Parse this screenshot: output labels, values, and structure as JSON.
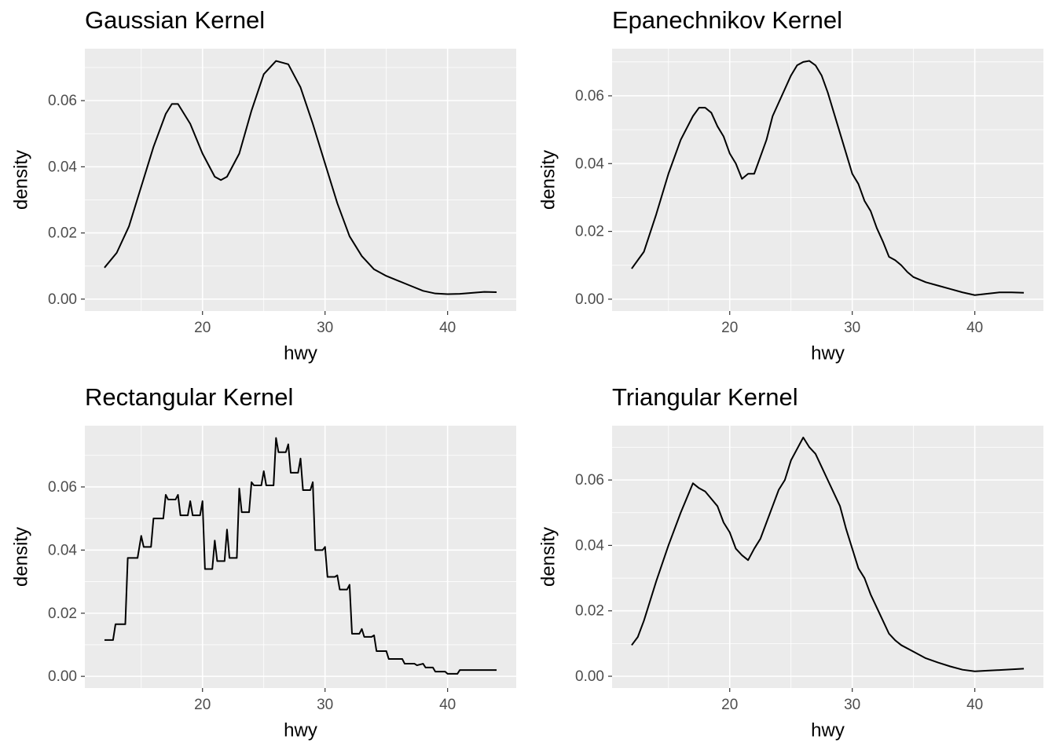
{
  "chart_data": [
    {
      "type": "line",
      "title": "Gaussian Kernel",
      "xlabel": "hwy",
      "ylabel": "density",
      "color": "#000000",
      "grid": true,
      "x": [
        12,
        13,
        14,
        15,
        16,
        17,
        17.5,
        18,
        19,
        20,
        21,
        21.5,
        22,
        23,
        24,
        25,
        26,
        27,
        28,
        29,
        30,
        31,
        32,
        33,
        34,
        35,
        36,
        37,
        38,
        39,
        40,
        41,
        42,
        43,
        44
      ],
      "values": [
        0.0095,
        0.014,
        0.022,
        0.034,
        0.046,
        0.056,
        0.059,
        0.059,
        0.053,
        0.044,
        0.037,
        0.036,
        0.037,
        0.044,
        0.057,
        0.068,
        0.072,
        0.071,
        0.064,
        0.053,
        0.041,
        0.029,
        0.019,
        0.013,
        0.009,
        0.007,
        0.0055,
        0.004,
        0.0025,
        0.0017,
        0.0015,
        0.0016,
        0.0019,
        0.0022,
        0.0021
      ],
      "xlim": [
        10.4,
        45.6
      ],
      "ylim": [
        -0.0036,
        0.0757
      ],
      "xticks": [
        20,
        30,
        40
      ],
      "yticks": [
        {
          "value": 0,
          "label": "0.00"
        },
        0.02,
        0.04,
        0.06
      ],
      "xminor": [
        15,
        25,
        35
      ],
      "yminor": [
        0.01,
        0.03,
        0.05,
        0.07
      ]
    },
    {
      "type": "line",
      "title": "Epanechnikov Kernel",
      "xlabel": "hwy",
      "ylabel": "density",
      "color": "#000000",
      "grid": true,
      "x": [
        12,
        12.5,
        13,
        14,
        15,
        16,
        17,
        17.5,
        18,
        18.5,
        19,
        19.5,
        20,
        20.5,
        21,
        21.5,
        22,
        22.5,
        23,
        23.5,
        24,
        24.5,
        25,
        25.5,
        26,
        26.5,
        27,
        27.5,
        28,
        28.5,
        29,
        29.5,
        30,
        30.5,
        31,
        31.5,
        32,
        32.5,
        33,
        33.5,
        34,
        34.5,
        35,
        36,
        37,
        38,
        39,
        40,
        41,
        42,
        43,
        44
      ],
      "values": [
        0.009,
        0.0115,
        0.014,
        0.025,
        0.037,
        0.047,
        0.054,
        0.0565,
        0.0565,
        0.055,
        0.051,
        0.048,
        0.043,
        0.04,
        0.0355,
        0.037,
        0.037,
        0.042,
        0.047,
        0.054,
        0.058,
        0.062,
        0.066,
        0.069,
        0.07,
        0.0703,
        0.069,
        0.066,
        0.061,
        0.055,
        0.049,
        0.043,
        0.037,
        0.034,
        0.029,
        0.026,
        0.021,
        0.017,
        0.0125,
        0.0115,
        0.01,
        0.008,
        0.0065,
        0.005,
        0.004,
        0.003,
        0.002,
        0.0012,
        0.0016,
        0.002,
        0.002,
        0.0019
      ],
      "xlim": [
        10.4,
        45.6
      ],
      "ylim": [
        -0.0035,
        0.0739
      ],
      "xticks": [
        20,
        30,
        40
      ],
      "yticks": [
        {
          "value": 0,
          "label": "0.00"
        },
        0.02,
        0.04,
        0.06
      ],
      "xminor": [
        15,
        25,
        35
      ],
      "yminor": [
        0.01,
        0.03,
        0.05,
        0.07
      ]
    },
    {
      "type": "line",
      "title": "Rectangular Kernel",
      "xlabel": "hwy",
      "ylabel": "density",
      "color": "#000000",
      "grid": true,
      "x": [
        12,
        12.7,
        12.9,
        13.7,
        13.9,
        14.7,
        15,
        15.2,
        15.8,
        16,
        16.8,
        17,
        17.2,
        17.8,
        18,
        18.2,
        18.8,
        19,
        19.2,
        19.8,
        20,
        20.2,
        20.8,
        21,
        21.2,
        21.8,
        22,
        22.2,
        22.8,
        23,
        23.2,
        23.8,
        24,
        24.2,
        24.8,
        25,
        25.2,
        25.8,
        26,
        26.2,
        26.8,
        27,
        27.2,
        27.8,
        28,
        28.2,
        28.8,
        29,
        29.2,
        29.8,
        30,
        30.2,
        30.8,
        31,
        31.2,
        31.8,
        32,
        32.2,
        32.8,
        33,
        33.2,
        33.8,
        34,
        34.2,
        35,
        35.2,
        36.3,
        36.5,
        37.3,
        37.5,
        38,
        38.2,
        38.8,
        39,
        39.8,
        40,
        40.8,
        41,
        44
      ],
      "values": [
        0.0115,
        0.0115,
        0.0165,
        0.0165,
        0.0375,
        0.0375,
        0.0445,
        0.041,
        0.041,
        0.05,
        0.05,
        0.0575,
        0.056,
        0.056,
        0.0575,
        0.051,
        0.051,
        0.0555,
        0.051,
        0.051,
        0.0555,
        0.034,
        0.034,
        0.043,
        0.0365,
        0.0365,
        0.0465,
        0.0375,
        0.0375,
        0.0595,
        0.052,
        0.052,
        0.0615,
        0.0605,
        0.0605,
        0.065,
        0.0605,
        0.0605,
        0.0755,
        0.071,
        0.071,
        0.0735,
        0.0645,
        0.0645,
        0.069,
        0.059,
        0.059,
        0.0615,
        0.04,
        0.04,
        0.041,
        0.0315,
        0.0315,
        0.032,
        0.0275,
        0.0275,
        0.029,
        0.0135,
        0.0135,
        0.015,
        0.0125,
        0.0125,
        0.013,
        0.008,
        0.008,
        0.0055,
        0.0055,
        0.004,
        0.004,
        0.0035,
        0.004,
        0.0028,
        0.0028,
        0.0015,
        0.0015,
        0.0008,
        0.0008,
        0.002,
        0.002
      ],
      "xlim": [
        10.4,
        45.6
      ],
      "ylim": [
        -0.0037,
        0.0794
      ],
      "xticks": [
        20,
        30,
        40
      ],
      "yticks": [
        {
          "value": 0,
          "label": "0.00"
        },
        0.02,
        0.04,
        0.06
      ],
      "xminor": [
        15,
        25,
        35
      ],
      "yminor": [
        0.01,
        0.03,
        0.05,
        0.07
      ]
    },
    {
      "type": "line",
      "title": "Triangular Kernel",
      "xlabel": "hwy",
      "ylabel": "density",
      "color": "#000000",
      "grid": true,
      "x": [
        12,
        12.5,
        13,
        14,
        15,
        16,
        17,
        17.5,
        18,
        19,
        19.5,
        20,
        20.5,
        21,
        21.5,
        22,
        22.5,
        23,
        23.5,
        24,
        24.5,
        25,
        25.5,
        26,
        26.5,
        27,
        27.5,
        28,
        28.5,
        29,
        29.5,
        30,
        30.5,
        31,
        31.5,
        32,
        32.5,
        33,
        33.5,
        34,
        35,
        36,
        37,
        38,
        39,
        40,
        41,
        42,
        43,
        44
      ],
      "values": [
        0.0095,
        0.012,
        0.017,
        0.029,
        0.04,
        0.05,
        0.059,
        0.0575,
        0.0565,
        0.052,
        0.047,
        0.044,
        0.039,
        0.037,
        0.0355,
        0.039,
        0.042,
        0.047,
        0.052,
        0.057,
        0.06,
        0.066,
        0.0695,
        0.073,
        0.07,
        0.068,
        0.064,
        0.06,
        0.056,
        0.052,
        0.045,
        0.039,
        0.033,
        0.03,
        0.025,
        0.021,
        0.017,
        0.013,
        0.011,
        0.0095,
        0.0075,
        0.0055,
        0.0042,
        0.003,
        0.002,
        0.0015,
        0.0017,
        0.0019,
        0.0021,
        0.0023
      ],
      "xlim": [
        10.4,
        45.6
      ],
      "ylim": [
        -0.0036,
        0.0766
      ],
      "xticks": [
        20,
        30,
        40
      ],
      "yticks": [
        {
          "value": 0,
          "label": "0.00"
        },
        0.02,
        0.04,
        0.06
      ],
      "xminor": [
        15,
        25,
        35
      ],
      "yminor": [
        0.01,
        0.03,
        0.05,
        0.07
      ]
    }
  ]
}
